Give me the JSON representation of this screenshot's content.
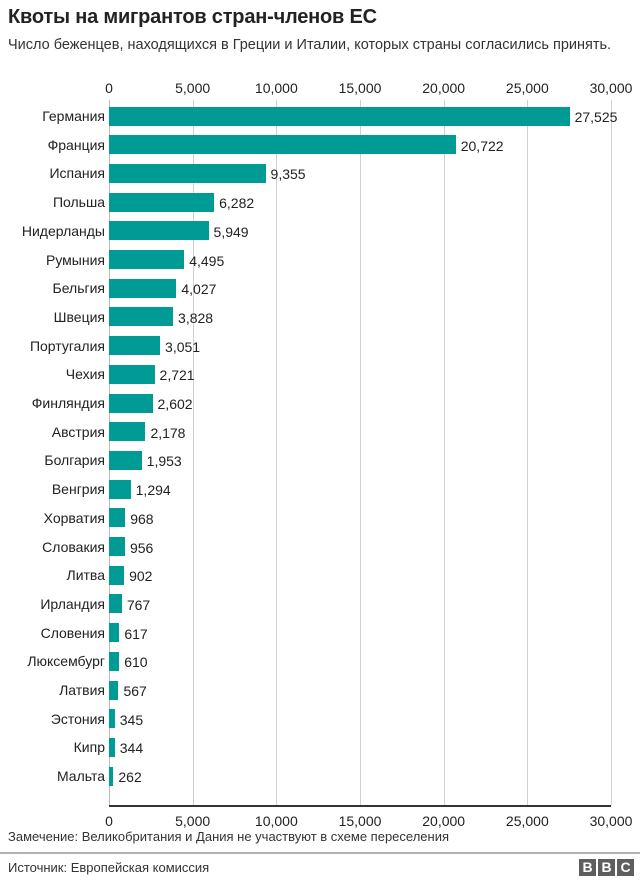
{
  "header": {
    "title": "Квоты на мигрантов стран-членов ЕС",
    "subtitle": "Число беженцев, находящихся в Греции и Италии, которых страны согласились принять."
  },
  "footer": {
    "note": "Замечение: Великобритания и Дания не участвуют в схеме переселения",
    "source": "Источник: Европейская комиссия",
    "logo": [
      "B",
      "B",
      "C"
    ]
  },
  "colors": {
    "bar": "#009b95",
    "grid": "#d0d0d0",
    "axis": "#333333",
    "logo_bg": "#5e5e5e"
  },
  "chart_data": {
    "type": "bar",
    "orientation": "horizontal",
    "title": "Квоты на мигрантов стран-членов ЕС",
    "subtitle": "Число беженцев, находящихся в Греции и Италии, которых страны согласились принять.",
    "xlabel": "",
    "ylabel": "",
    "xlim": [
      0,
      30000
    ],
    "xticks": [
      0,
      5000,
      10000,
      15000,
      20000,
      25000,
      30000
    ],
    "xtick_labels": [
      "0",
      "5,000",
      "10,000",
      "15,000",
      "20,000",
      "25,000",
      "30,000"
    ],
    "grid": "vertical",
    "legend": "none",
    "categories": [
      "Германия",
      "Франция",
      "Испания",
      "Польша",
      "Нидерланды",
      "Румыния",
      "Бельгия",
      "Швеция",
      "Португалия",
      "Чехия",
      "Финляндия",
      "Австрия",
      "Болгария",
      "Венгрия",
      "Хорватия",
      "Словакия",
      "Литва",
      "Ирландия",
      "Словения",
      "Люксембург",
      "Латвия",
      "Эстония",
      "Кипр",
      "Мальта"
    ],
    "values": [
      27525,
      20722,
      9355,
      6282,
      5949,
      4495,
      4027,
      3828,
      3051,
      2721,
      2602,
      2178,
      1953,
      1294,
      968,
      956,
      902,
      767,
      617,
      610,
      567,
      345,
      344,
      262
    ],
    "value_labels": [
      "27,525",
      "20,722",
      "9,355",
      "6,282",
      "5,949",
      "4,495",
      "4,027",
      "3,828",
      "3,051",
      "2,721",
      "2,602",
      "2,178",
      "1,953",
      "1,294",
      "968",
      "956",
      "902",
      "767",
      "617",
      "610",
      "567",
      "345",
      "344",
      "262"
    ],
    "note": "Замечение: Великобритания и Дания не участвуют в схеме переселения",
    "source": "Источник: Европейская комиссия"
  }
}
